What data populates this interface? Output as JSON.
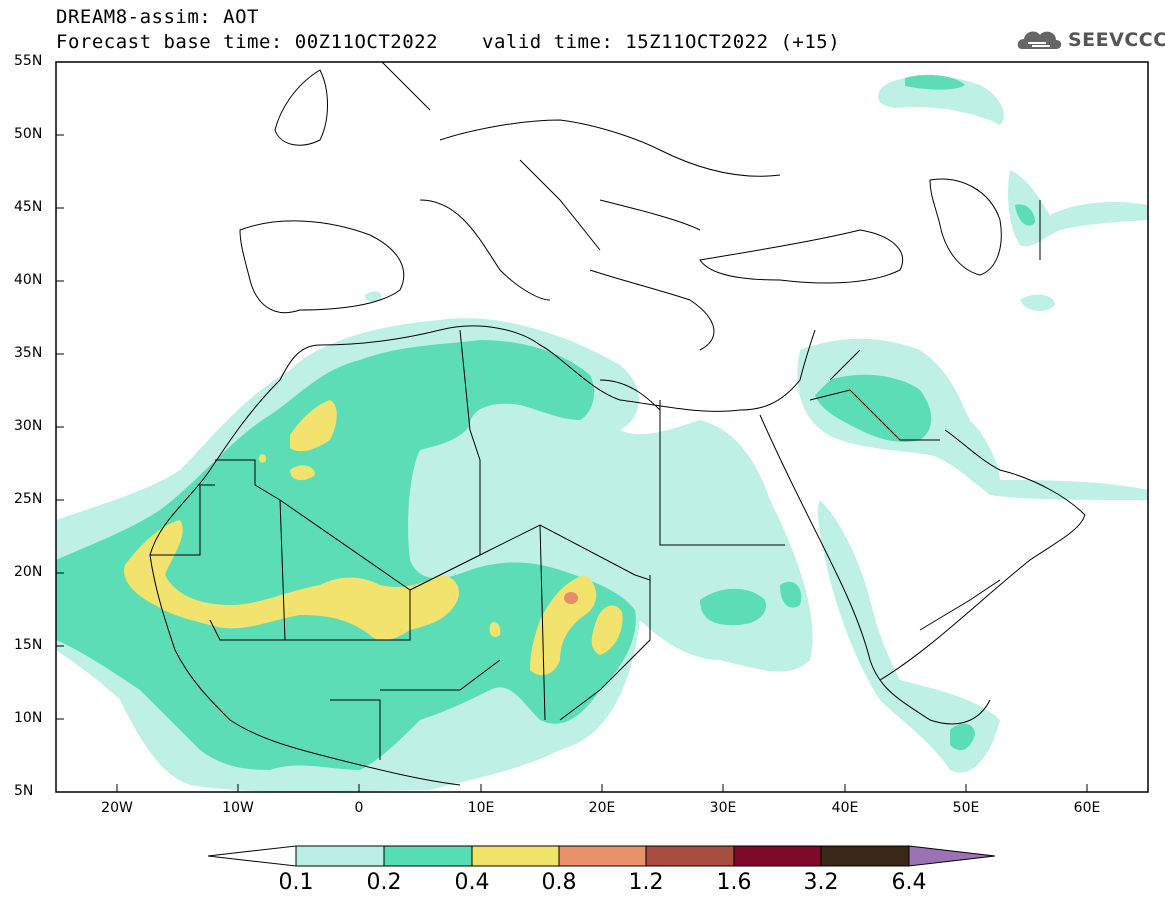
{
  "header": {
    "title": "DREAM8-assim: AOT",
    "base_time": "Forecast base time: 00Z11OCT2022",
    "valid_time": "valid time: 15Z11OCT2022 (+15)",
    "logo_text": "SEEVCCC"
  },
  "map": {
    "lat_labels": [
      "55N",
      "50N",
      "45N",
      "40N",
      "35N",
      "30N",
      "25N",
      "20N",
      "15N",
      "10N",
      "5N"
    ],
    "lon_labels": [
      "20W",
      "10W",
      "0",
      "10E",
      "20E",
      "30E",
      "40E",
      "50E",
      "60E"
    ],
    "lon_range": [
      -25,
      65
    ],
    "lat_range": [
      5,
      55
    ]
  },
  "colorbar": {
    "labels": [
      "0.1",
      "0.2",
      "0.4",
      "0.8",
      "1.2",
      "1.6",
      "3.2",
      "6.4"
    ],
    "colors": [
      "#b9efe4",
      "#55ddb4",
      "#f0e36a",
      "#e8916a",
      "#a84e40",
      "#7e0a2a",
      "#3a2818",
      "#9b72b4"
    ]
  },
  "colors": {
    "level1": "#bff0e6",
    "level2": "#5cddb6",
    "level3": "#f1e36d",
    "level4": "#e88c6c"
  }
}
